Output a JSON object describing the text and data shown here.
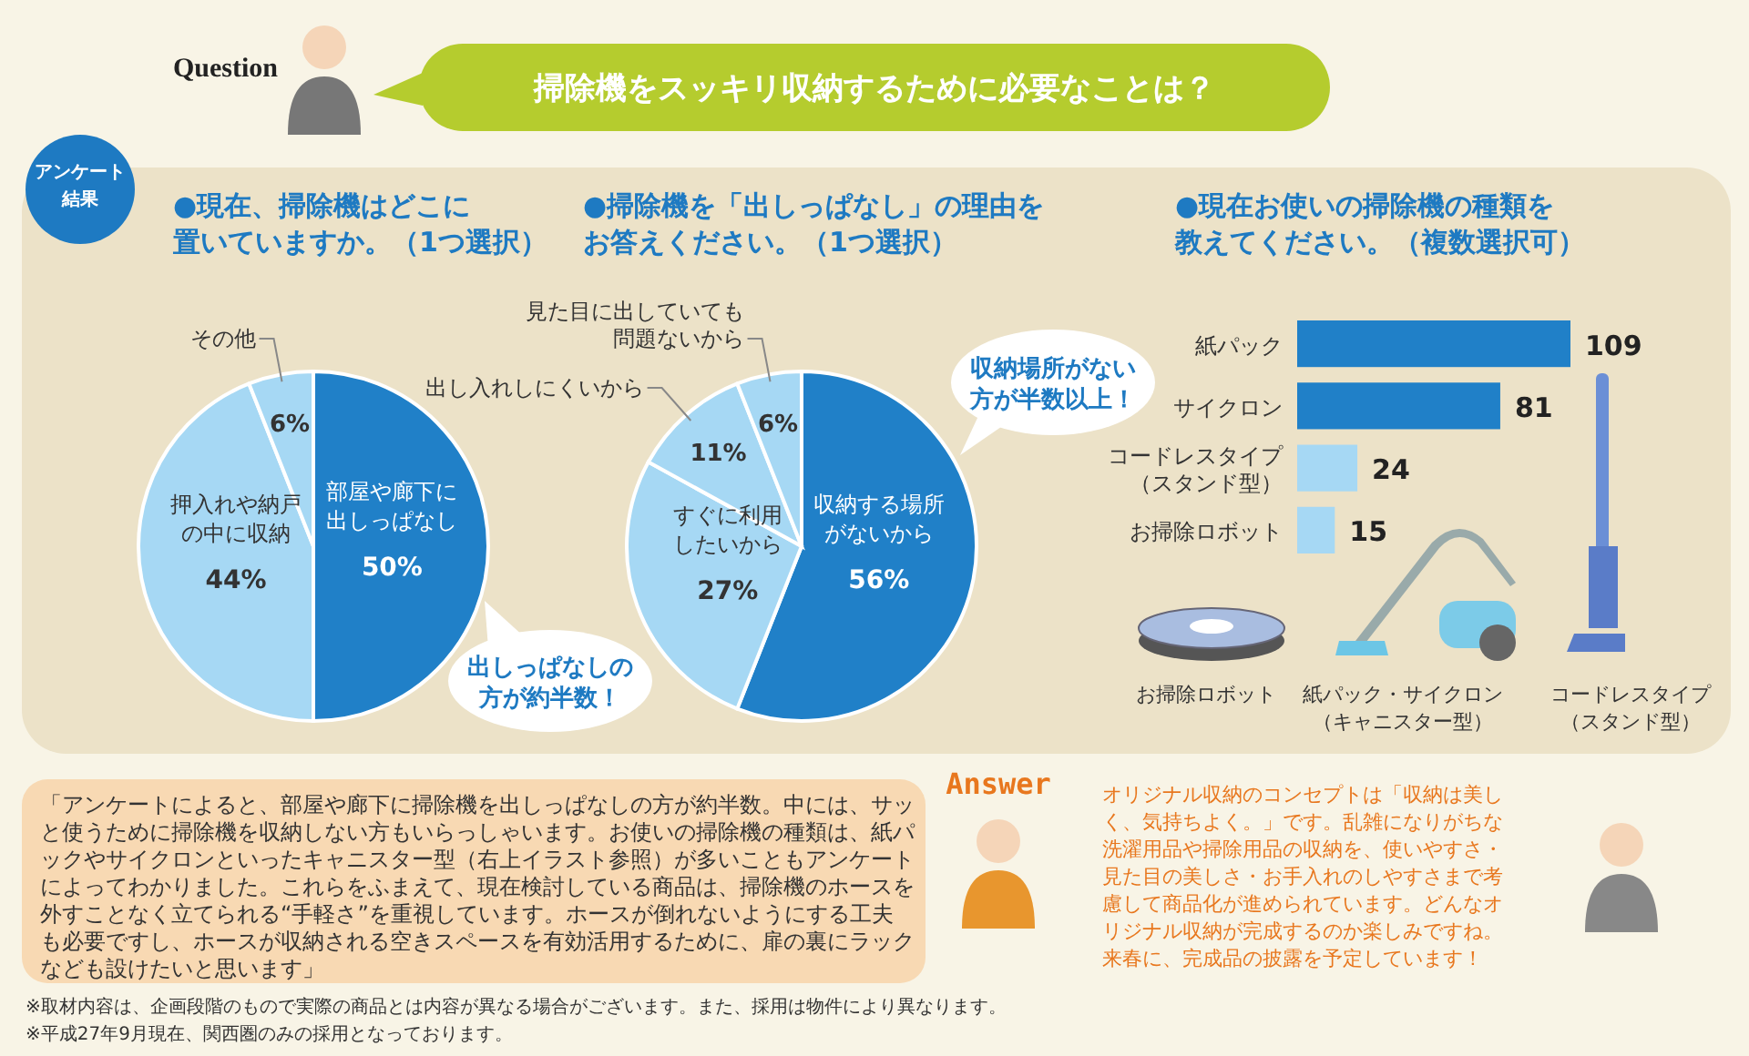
{
  "chart_data": [
    {
      "type": "pie",
      "title": "●現在、掃除機はどこに置いていますか。（1つ選択）",
      "categories": [
        "部屋や廊下に出しっぱなし",
        "押入れや納戸の中に収納",
        "その他"
      ],
      "values": [
        50,
        44,
        6
      ],
      "value_labels": [
        "50%",
        "44%",
        "6%"
      ],
      "colors": [
        "#2080c8",
        "#a6d8f4",
        "#a6d8f4"
      ],
      "annotations": [
        "出しっぱなしの方が約半数！"
      ]
    },
    {
      "type": "pie",
      "title": "●掃除機を「出しっぱなし」の理由をお答えください。（1つ選択）",
      "categories": [
        "収納する場所がないから",
        "すぐに利用したいから",
        "出し入れしにくいから",
        "見た目に出していても問題ないから"
      ],
      "values": [
        56,
        27,
        11,
        6
      ],
      "value_labels": [
        "56%",
        "27%",
        "11%",
        "6%"
      ],
      "colors": [
        "#2080c8",
        "#a6d8f4",
        "#a6d8f4",
        "#a6d8f4"
      ],
      "annotations": [
        "収納場所がない方が半数以上！"
      ]
    },
    {
      "type": "bar",
      "orientation": "horizontal",
      "title": "●現在お使いの掃除機の種類を教えてください。（複数選択可）",
      "categories": [
        "紙パック",
        "サイクロン",
        "コードレスタイプ（スタンド型）",
        "お掃除ロボット"
      ],
      "values": [
        109,
        81,
        24,
        15
      ],
      "colors": [
        "#2080c8",
        "#2080c8",
        "#a6d8f4",
        "#a6d8f4"
      ],
      "data_labels": true,
      "annotations": [
        "お掃除ロボット",
        "紙パック・サイクロン（キャニスター型）",
        "コードレスタイプ（スタンド型）"
      ]
    },
    {
      "type": "other",
      "title": "掃除機をスッキリ収納するために必要なことは？",
      "annotations": [
        "Question",
        "アンケート結果",
        "Answer",
        "「アンケートによると、部屋や廊下に掃除機を出しっぱなしの方が約半数。中には、サッと使うために掃除機を収納しない方もいらっしゃいます。お使いの掃除機の種類は、紙パックやサイクロンといったキャニスター型（右上イラスト参照）が多いこともアンケートによってわかりました。これらをふまえて、現在検討している商品は、掃除機のホースを外すことなく立てられる“手軽さ”を重視しています。ホースが倒れないようにする工夫も必要ですし、ホースが収納される空きスペースを有効活用するために、扉の裏にラックなども設けたいと思います」",
        "オリジナル収納のコンセプトは「収納は美しく、気持ちよく。」です。乱雑になりがちな洗濯用品や掃除用品の収納を、使いやすさ・見た目の美しさ・お手入れのしやすさまで考慮して商品化が進められています。どんなオリジナル収納が完成するのか楽しみですね。来春に、完成品の披露を予定しています！",
        "※取材内容は、企画段階のもので実際の商品とは内容が異なる場合がございます。また、採用は物件により異なります。",
        "※平成27年9月現在、関西圏のみの採用となっております。"
      ]
    }
  ]
}
